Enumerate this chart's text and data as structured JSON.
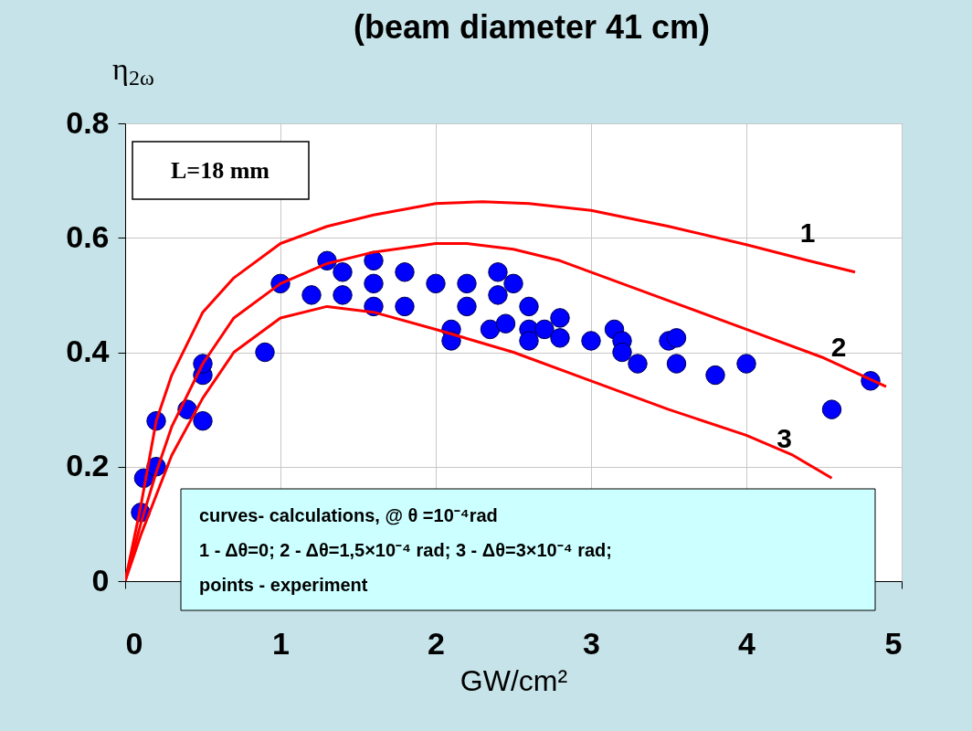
{
  "chart_data": {
    "type": "scatter",
    "title": "(beam diameter 41 cm)",
    "xlabel": "GW/cm²",
    "ylabel": "η$_{2ω}$",
    "xlim": [
      0,
      5
    ],
    "ylim": [
      0,
      0.8
    ],
    "xticks": [
      0,
      1,
      2,
      3,
      4,
      5
    ],
    "yticks": [
      0,
      0.2,
      0.4,
      0.6,
      0.8
    ],
    "grid": true,
    "annotations": [
      "L=18 mm",
      "curves- calculations, @ θ =10⁻⁴rad",
      "1 - Δθ=0;   2 - Δθ=1,5×10⁻⁴ rad; 3 - Δθ=3×10⁻⁴ rad;",
      "points - experiment"
    ],
    "series": [
      {
        "name": "1",
        "type": "line",
        "color": "#ff0000",
        "line_style": "solid",
        "x": [
          0,
          0.1,
          0.2,
          0.3,
          0.5,
          0.7,
          1.0,
          1.3,
          1.6,
          2.0,
          2.3,
          2.6,
          3.0,
          3.5,
          4.0,
          4.4,
          4.7
        ],
        "values": [
          0,
          0.13,
          0.28,
          0.36,
          0.47,
          0.53,
          0.59,
          0.62,
          0.64,
          0.66,
          0.663,
          0.66,
          0.648,
          0.62,
          0.588,
          0.56,
          0.54
        ]
      },
      {
        "name": "2",
        "type": "line",
        "color": "#ff0000",
        "line_style": "solid",
        "x": [
          0,
          0.1,
          0.2,
          0.3,
          0.5,
          0.7,
          1.0,
          1.3,
          1.6,
          2.0,
          2.2,
          2.5,
          2.8,
          3.0,
          3.5,
          4.0,
          4.5,
          4.9
        ],
        "values": [
          0,
          0.1,
          0.19,
          0.27,
          0.38,
          0.46,
          0.52,
          0.555,
          0.575,
          0.59,
          0.59,
          0.58,
          0.56,
          0.54,
          0.49,
          0.44,
          0.39,
          0.34
        ]
      },
      {
        "name": "3",
        "type": "line",
        "color": "#ff0000",
        "line_style": "solid",
        "x": [
          0,
          0.1,
          0.2,
          0.3,
          0.5,
          0.7,
          1.0,
          1.3,
          1.6,
          2.0,
          2.5,
          3.0,
          3.5,
          4.0,
          4.3,
          4.55
        ],
        "values": [
          0,
          0.08,
          0.15,
          0.22,
          0.32,
          0.4,
          0.46,
          0.48,
          0.47,
          0.44,
          0.4,
          0.35,
          0.3,
          0.255,
          0.22,
          0.18
        ]
      },
      {
        "color": "#0000ff",
        "marker": "circle",
        "x": [
          0.1,
          0.12,
          0.2,
          0.2,
          0.4,
          0.5,
          0.5,
          0.5,
          0.9,
          1.0,
          1.2,
          1.3,
          1.4,
          1.4,
          1.6,
          1.6,
          1.6,
          1.8,
          1.8,
          2.0,
          2.1,
          2.1,
          2.2,
          2.2,
          2.35,
          2.4,
          2.4,
          2.45,
          2.5,
          2.6,
          2.6,
          2.6,
          2.7,
          2.8,
          2.8,
          3.0,
          3.15,
          3.2,
          3.2,
          3.3,
          3.5,
          3.55,
          3.55,
          3.8,
          4.0,
          4.55,
          4.8
        ],
        "values": [
          0.12,
          0.18,
          0.2,
          0.28,
          0.3,
          0.28,
          0.36,
          0.38,
          0.4,
          0.52,
          0.5,
          0.56,
          0.54,
          0.5,
          0.56,
          0.52,
          0.48,
          0.54,
          0.48,
          0.52,
          0.44,
          0.42,
          0.52,
          0.48,
          0.44,
          0.54,
          0.5,
          0.45,
          0.52,
          0.48,
          0.44,
          0.42,
          0.44,
          0.46,
          0.425,
          0.42,
          0.44,
          0.42,
          0.4,
          0.38,
          0.42,
          0.425,
          0.38,
          0.36,
          0.38,
          0.3,
          0.35
        ]
      }
    ]
  }
}
